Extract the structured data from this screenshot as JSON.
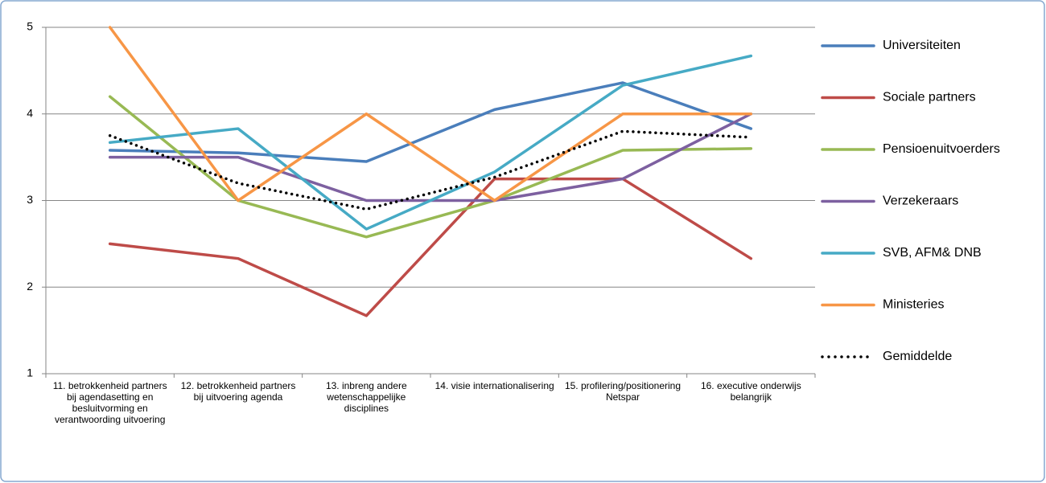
{
  "chart_data": {
    "type": "line",
    "categories": [
      "11. betrokkenheid partners bij agendasetting en besluitvorming en verantwoording uitvoering",
      "12. betrokkenheid partners bij uitvoering agenda",
      "13. inbreng andere wetenschappelijke disciplines",
      "14. visie internationalisering",
      "15. profilering/positionering Netspar",
      "16. executive onderwijs belangrijk"
    ],
    "series": [
      {
        "name": "Universiteiten",
        "color": "#4a7ebb",
        "values": [
          3.58,
          3.55,
          3.45,
          4.05,
          4.36,
          3.83
        ]
      },
      {
        "name": "Sociale partners",
        "color": "#be4b48",
        "values": [
          2.5,
          2.33,
          1.67,
          3.25,
          3.25,
          2.33
        ]
      },
      {
        "name": "Pensioenuitvoerders",
        "color": "#98b954",
        "values": [
          4.2,
          3.0,
          2.58,
          3.0,
          3.58,
          3.6
        ]
      },
      {
        "name": "Verzekeraars",
        "color": "#7d60a0",
        "values": [
          3.5,
          3.5,
          3.0,
          3.0,
          3.25,
          4.0
        ]
      },
      {
        "name": "SVB, AFM& DNB",
        "color": "#46aac5",
        "values": [
          3.67,
          3.83,
          2.67,
          3.33,
          4.33,
          4.67
        ]
      },
      {
        "name": "Ministeries",
        "color": "#f79646",
        "values": [
          5,
          3,
          4,
          3,
          4,
          4
        ]
      },
      {
        "name": "Gemiddelde",
        "color": "#000000",
        "dash": "dotted",
        "values": [
          3.75,
          3.2,
          2.9,
          3.27,
          3.8,
          3.73
        ]
      }
    ],
    "ylim": [
      1,
      5
    ],
    "yticks": [
      1,
      2,
      3,
      4,
      5
    ],
    "grid": true,
    "legend": "right"
  }
}
